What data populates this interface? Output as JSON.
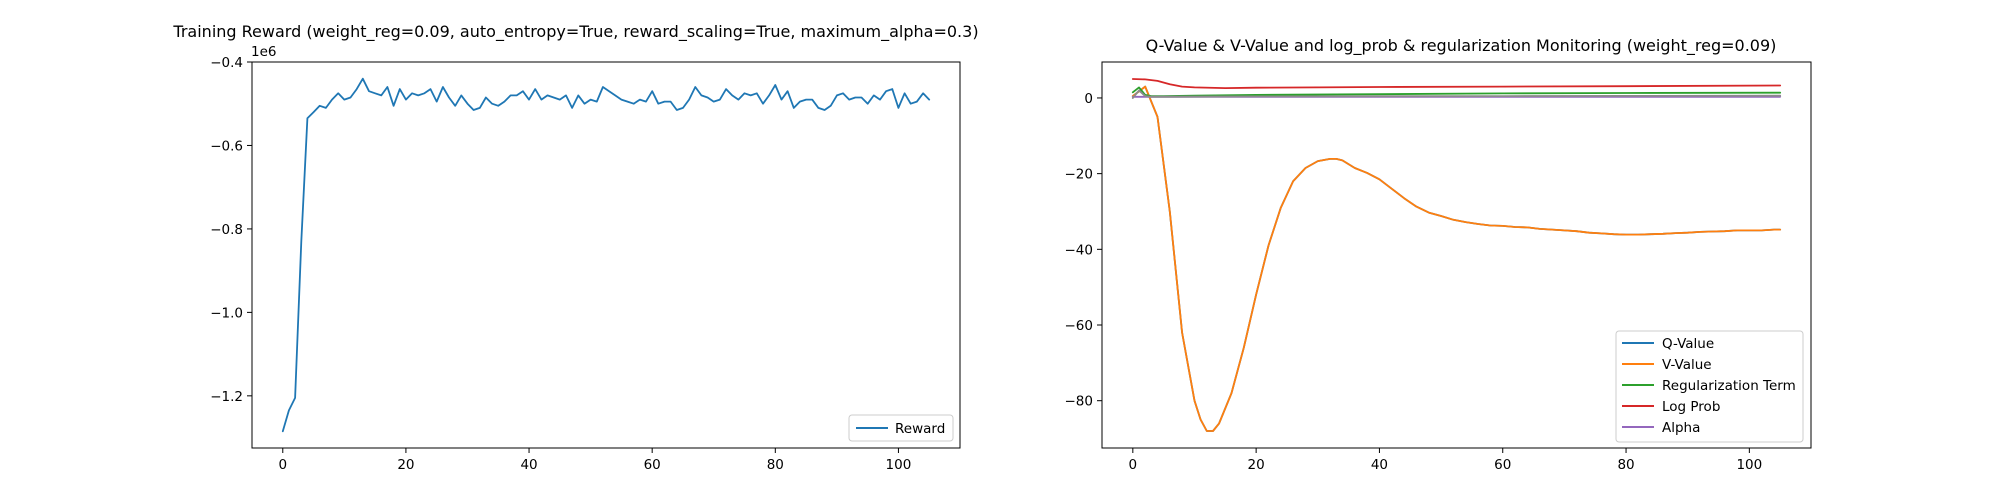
{
  "chart_data": [
    {
      "type": "line",
      "title": "Training Reward (weight_reg=0.09, auto_entropy=True, reward_scaling=True, maximum_alpha=0.3)",
      "xlabel": "",
      "ylabel": "",
      "y_scale_label": "1e6",
      "xlim": [
        -5,
        110
      ],
      "ylim": [
        -1.325,
        -0.4
      ],
      "xticks": [
        0,
        20,
        40,
        60,
        80,
        100
      ],
      "yticks": [
        -1.2,
        -1.0,
        -0.8,
        -0.6,
        -0.4
      ],
      "ytick_labels": [
        "−1.2",
        "−1.0",
        "−0.8",
        "−0.6",
        "−0.4"
      ],
      "xtick_labels": [
        "0",
        "20",
        "40",
        "60",
        "80",
        "100"
      ],
      "legend_position": "lower-right",
      "grid": false,
      "series": [
        {
          "name": "Reward",
          "color": "#1f77b4",
          "x": [
            0,
            1,
            2,
            3,
            4,
            5,
            6,
            7,
            8,
            9,
            10,
            11,
            12,
            13,
            14,
            15,
            16,
            17,
            18,
            19,
            20,
            21,
            22,
            23,
            24,
            25,
            26,
            27,
            28,
            29,
            30,
            31,
            32,
            33,
            34,
            35,
            36,
            37,
            38,
            39,
            40,
            41,
            42,
            43,
            44,
            45,
            46,
            47,
            48,
            49,
            50,
            51,
            52,
            53,
            54,
            55,
            56,
            57,
            58,
            59,
            60,
            61,
            62,
            63,
            64,
            65,
            66,
            67,
            68,
            69,
            70,
            71,
            72,
            73,
            74,
            75,
            76,
            77,
            78,
            79,
            80,
            81,
            82,
            83,
            84,
            85,
            86,
            87,
            88,
            89,
            90,
            91,
            92,
            93,
            94,
            95,
            96,
            97,
            98,
            99,
            100,
            101,
            102,
            103,
            104,
            105
          ],
          "y": [
            -1.285,
            -1.235,
            -1.205,
            -0.83,
            -0.535,
            -0.52,
            -0.505,
            -0.51,
            -0.49,
            -0.475,
            -0.49,
            -0.485,
            -0.465,
            -0.44,
            -0.47,
            -0.475,
            -0.48,
            -0.46,
            -0.505,
            -0.465,
            -0.49,
            -0.475,
            -0.48,
            -0.475,
            -0.465,
            -0.495,
            -0.46,
            -0.485,
            -0.505,
            -0.48,
            -0.5,
            -0.515,
            -0.51,
            -0.485,
            -0.5,
            -0.505,
            -0.495,
            -0.48,
            -0.48,
            -0.47,
            -0.49,
            -0.465,
            -0.49,
            -0.48,
            -0.485,
            -0.49,
            -0.48,
            -0.51,
            -0.48,
            -0.5,
            -0.49,
            -0.495,
            -0.46,
            -0.47,
            -0.48,
            -0.49,
            -0.495,
            -0.5,
            -0.49,
            -0.495,
            -0.47,
            -0.5,
            -0.495,
            -0.495,
            -0.515,
            -0.51,
            -0.49,
            -0.46,
            -0.48,
            -0.485,
            -0.495,
            -0.49,
            -0.465,
            -0.48,
            -0.49,
            -0.475,
            -0.48,
            -0.475,
            -0.5,
            -0.48,
            -0.455,
            -0.49,
            -0.47,
            -0.51,
            -0.495,
            -0.49,
            -0.49,
            -0.51,
            -0.515,
            -0.505,
            -0.48,
            -0.475,
            -0.49,
            -0.485,
            -0.485,
            -0.5,
            -0.48,
            -0.49,
            -0.47,
            -0.465,
            -0.51,
            -0.475,
            -0.5,
            -0.495,
            -0.475,
            -0.49
          ]
        }
      ]
    },
    {
      "type": "line",
      "title": "Q-Value & V-Value and log_prob & regularization Monitoring (weight_reg=0.09)",
      "xlabel": "",
      "ylabel": "",
      "xlim": [
        -5,
        110
      ],
      "ylim": [
        -92.5,
        9.5
      ],
      "xticks": [
        0,
        20,
        40,
        60,
        80,
        100
      ],
      "yticks": [
        -80,
        -60,
        -40,
        -20,
        0
      ],
      "ytick_labels": [
        "−80",
        "−60",
        "−40",
        "−20",
        "0"
      ],
      "xtick_labels": [
        "0",
        "20",
        "40",
        "60",
        "80",
        "100"
      ],
      "legend_position": "lower-right",
      "grid": false,
      "series": [
        {
          "name": "Q-Value",
          "color": "#1f77b4",
          "x": [
            0,
            2,
            4,
            6,
            8,
            10,
            11,
            12,
            13,
            14,
            16,
            18,
            20,
            22,
            24,
            26,
            28,
            30,
            32,
            33,
            34,
            36,
            38,
            40,
            42,
            44,
            46,
            48,
            50,
            52,
            54,
            56,
            58,
            60,
            62,
            64,
            66,
            68,
            70,
            72,
            74,
            76,
            78,
            80,
            82,
            84,
            86,
            88,
            90,
            92,
            94,
            96,
            98,
            100,
            102,
            104,
            105
          ],
          "y": [
            0.5,
            3,
            -5,
            -30,
            -62,
            -80,
            -85,
            -88,
            -88,
            -86,
            -78,
            -66,
            -52,
            -39,
            -29,
            -22,
            -18.5,
            -16.7,
            -16.1,
            -16.1,
            -16.5,
            -18.5,
            -19.8,
            -21.5,
            -24,
            -26.5,
            -28.7,
            -30.3,
            -31.2,
            -32.2,
            -32.8,
            -33.3,
            -33.7,
            -33.8,
            -34.1,
            -34.2,
            -34.6,
            -34.8,
            -35,
            -35.2,
            -35.6,
            -35.8,
            -36,
            -36.1,
            -36.1,
            -36,
            -35.9,
            -35.7,
            -35.6,
            -35.4,
            -35.3,
            -35.2,
            -35,
            -35,
            -35,
            -34.8,
            -34.8
          ]
        },
        {
          "name": "V-Value",
          "color": "#ff7f0e",
          "x": [
            0,
            2,
            4,
            6,
            8,
            10,
            11,
            12,
            13,
            14,
            16,
            18,
            20,
            22,
            24,
            26,
            28,
            30,
            32,
            33,
            34,
            36,
            38,
            40,
            42,
            44,
            46,
            48,
            50,
            52,
            54,
            56,
            58,
            60,
            62,
            64,
            66,
            68,
            70,
            72,
            74,
            76,
            78,
            80,
            82,
            84,
            86,
            88,
            90,
            92,
            94,
            96,
            98,
            100,
            102,
            104,
            105
          ],
          "y": [
            0.5,
            3,
            -5,
            -30,
            -62,
            -80,
            -85,
            -88,
            -88,
            -86,
            -78,
            -66,
            -52,
            -39,
            -29,
            -22,
            -18.5,
            -16.7,
            -16.1,
            -16.1,
            -16.5,
            -18.5,
            -19.8,
            -21.5,
            -24,
            -26.5,
            -28.7,
            -30.3,
            -31.2,
            -32.2,
            -32.8,
            -33.3,
            -33.7,
            -33.8,
            -34.1,
            -34.2,
            -34.6,
            -34.8,
            -35,
            -35.2,
            -35.6,
            -35.8,
            -36,
            -36.1,
            -36.1,
            -36,
            -35.9,
            -35.7,
            -35.6,
            -35.4,
            -35.3,
            -35.2,
            -35,
            -35,
            -35,
            -34.8,
            -34.8
          ]
        },
        {
          "name": "Regularization Term",
          "color": "#2ca02c",
          "x": [
            0,
            1,
            2,
            3,
            5,
            10,
            20,
            40,
            60,
            80,
            105
          ],
          "y": [
            1.5,
            2.8,
            0.8,
            0.5,
            0.5,
            0.6,
            0.8,
            1.0,
            1.2,
            1.3,
            1.4
          ]
        },
        {
          "name": "Log Prob",
          "color": "#d62728",
          "x": [
            0,
            2,
            4,
            6,
            8,
            10,
            15,
            20,
            30,
            40,
            60,
            80,
            105
          ],
          "y": [
            5,
            4.9,
            4.5,
            3.6,
            3,
            2.8,
            2.6,
            2.7,
            2.8,
            2.9,
            3,
            3.1,
            3.3
          ]
        },
        {
          "name": "Alpha",
          "color": "#9467bd",
          "x": [
            0,
            1,
            2,
            3,
            105
          ],
          "y": [
            0.3,
            0.3,
            0.3,
            0.3,
            0.3
          ]
        },
        {
          "name": "",
          "color": "#8c8c8c",
          "x": [
            0,
            1,
            2,
            3,
            5,
            20,
            40,
            60,
            80,
            105
          ],
          "y": [
            0,
            2,
            0.5,
            0.3,
            0.3,
            0.4,
            0.45,
            0.5,
            0.55,
            0.6
          ]
        }
      ]
    }
  ]
}
